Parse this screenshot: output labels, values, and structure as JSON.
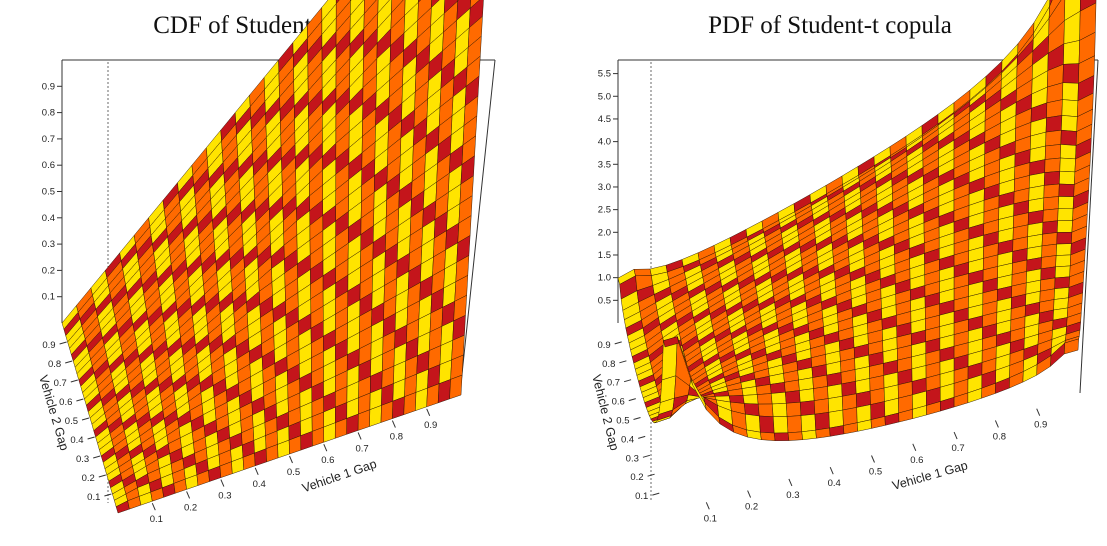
{
  "colors": {
    "dark": "#c4151b",
    "mid": "#ff6a00",
    "light": "#ffe400",
    "edge": "#2a1400"
  },
  "chart_data": [
    {
      "type": "surface3d",
      "title": "CDF of Student-t copula",
      "xlabel": "Vehicle 1 Gap",
      "ylabel": "Vehicle 2 Gap",
      "x_ticks": [
        "0.1",
        "0.2",
        "0.3",
        "0.4",
        "0.5",
        "0.6",
        "0.7",
        "0.8",
        "0.9"
      ],
      "y_ticks": [
        "0.1",
        "0.2",
        "0.3",
        "0.4",
        "0.5",
        "0.6",
        "0.7",
        "0.8",
        "0.9"
      ],
      "z_ticks": [
        "0.1",
        "0.2",
        "0.3",
        "0.4",
        "0.5",
        "0.6",
        "0.7",
        "0.8",
        "0.9"
      ],
      "zlim": [
        0,
        1
      ],
      "surface": "C(u,v) of Student-t copula, rising from 0 at the origin to about 1 at (1,1)"
    },
    {
      "type": "surface3d",
      "title": "PDF of Student-t copula",
      "xlabel": "Vehicle 1 Gap",
      "ylabel": "Vehicle 2 Gap",
      "x_ticks": [
        "0.1",
        "0.2",
        "0.3",
        "0.4",
        "0.5",
        "0.6",
        "0.7",
        "0.8",
        "0.9"
      ],
      "y_ticks": [
        "0.1",
        "0.2",
        "0.3",
        "0.4",
        "0.5",
        "0.6",
        "0.7",
        "0.8",
        "0.9"
      ],
      "z_ticks": [
        "0.5",
        "1.0",
        "1.5",
        "2.0",
        "2.5",
        "3.0",
        "3.5",
        "4.0",
        "4.5",
        "5.0",
        "5.5"
      ],
      "zlim": [
        0,
        5.8
      ],
      "surface": "c(u,v) of Student-t copula with sharp peaks near 5.5 at the corners (0,0) and (1,1)"
    }
  ]
}
